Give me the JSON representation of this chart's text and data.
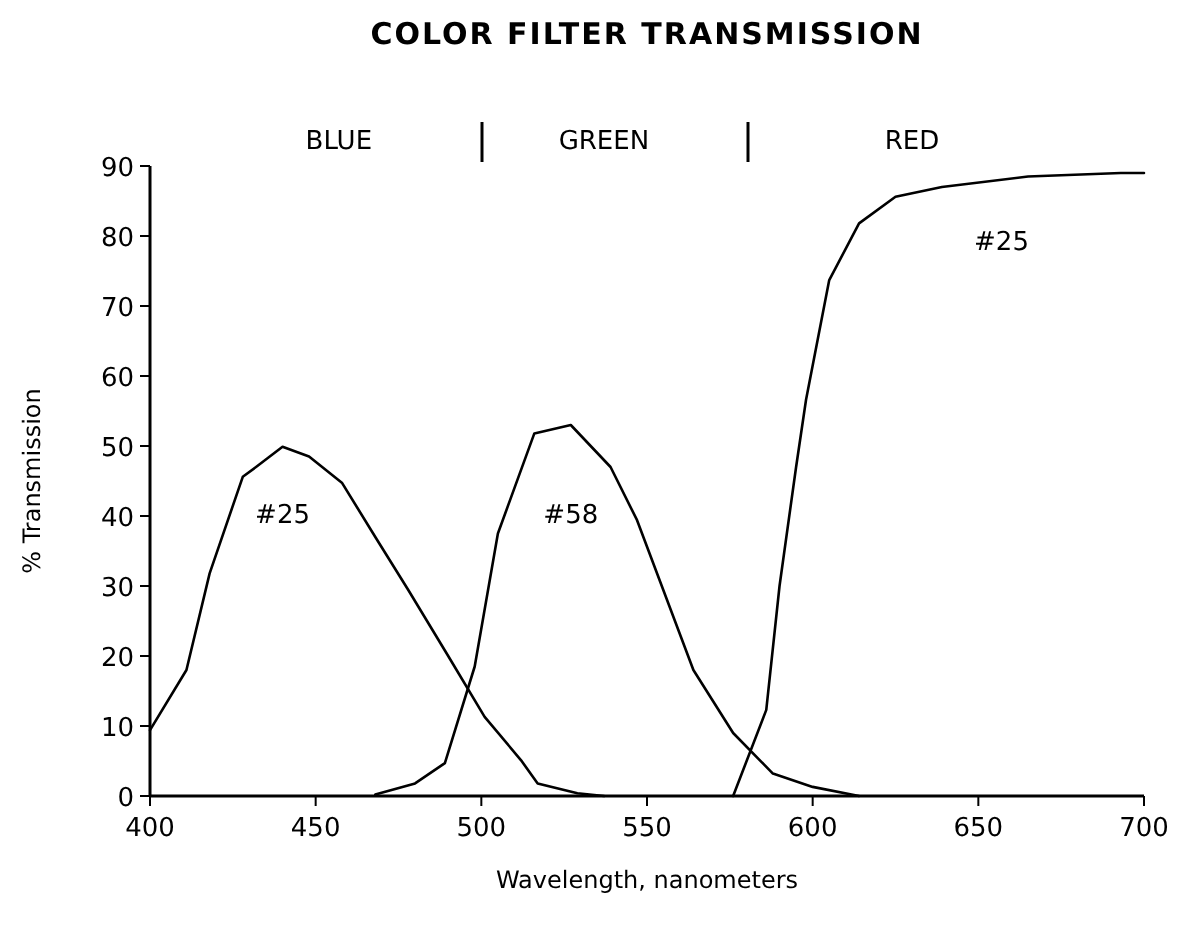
{
  "chart_data": {
    "type": "line",
    "title": "COLOR FILTER TRANSMISSION",
    "xlabel": "Wavelength, nanometers",
    "ylabel": "% Transmission",
    "xlim": [
      400,
      700
    ],
    "xticks": [
      400,
      450,
      500,
      550,
      600,
      650,
      700
    ],
    "ylim": [
      0,
      90
    ],
    "yticks": [
      0,
      10,
      20,
      30,
      40,
      50,
      60,
      70,
      80,
      90
    ],
    "grid": false,
    "marker": "none",
    "line_style": "solid",
    "annotations": [
      "BLUE",
      "GREEN",
      "RED",
      "#25",
      "#58",
      "#25"
    ],
    "series": [
      {
        "color": "#000000",
        "x": [
          400,
          411,
          418,
          428,
          432,
          440,
          448,
          458,
          468,
          478,
          490,
          501,
          512,
          517,
          529,
          537
        ],
        "values": [
          9.4,
          18,
          31.8,
          45.6,
          47,
          49.9,
          48.5,
          44.7,
          37,
          29.4,
          20,
          11.3,
          5.1,
          1.8,
          0.4,
          0
        ]
      },
      {
        "color": "#000000",
        "x": [
          468,
          480,
          489,
          498,
          505,
          516,
          527,
          539,
          547,
          564,
          576,
          588,
          600,
          614
        ],
        "values": [
          0.2,
          1.8,
          4.7,
          18.5,
          37.5,
          51.8,
          53,
          47,
          39.4,
          18,
          9,
          3.2,
          1.3,
          0
        ]
      },
      {
        "color": "#000000",
        "x": [
          576,
          586,
          590,
          595,
          598,
          605,
          614,
          625,
          639,
          665,
          693,
          700
        ],
        "values": [
          0,
          12.3,
          30,
          47,
          56.6,
          73.7,
          81.8,
          85.6,
          87,
          88.5,
          89,
          89
        ]
      }
    ]
  }
}
